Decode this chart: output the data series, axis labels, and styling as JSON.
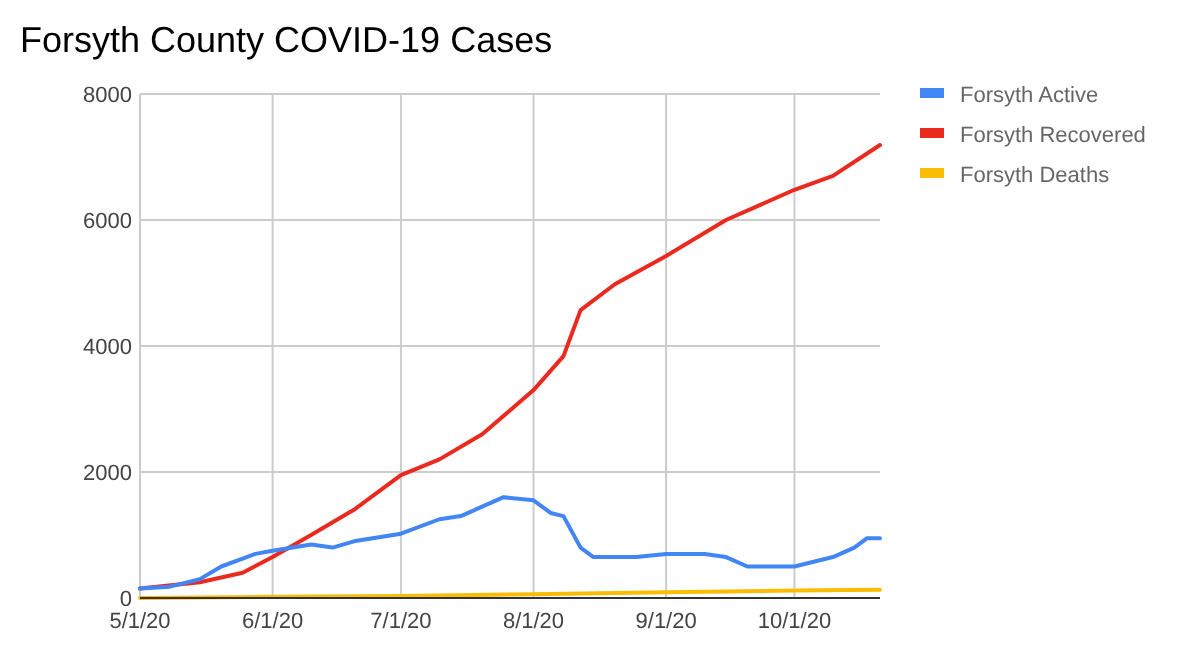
{
  "chart_data": {
    "type": "line",
    "title": "Forsyth County COVID-19 Cases",
    "legend": "right",
    "grid": true,
    "xlim": [
      "2020-05-01",
      "2020-10-21"
    ],
    "xticks": [
      {
        "value": "2020-05-01",
        "label": "5/1/20"
      },
      {
        "value": "2020-06-01",
        "label": "6/1/20"
      },
      {
        "value": "2020-07-01",
        "label": "7/1/20"
      },
      {
        "value": "2020-08-01",
        "label": "8/1/20"
      },
      {
        "value": "2020-09-01",
        "label": "9/1/20"
      },
      {
        "value": "2020-10-01",
        "label": "10/1/20"
      }
    ],
    "ylim": [
      0,
      8000
    ],
    "yticks": [
      0,
      2000,
      4000,
      6000,
      8000
    ],
    "series": [
      {
        "name": "Forsyth Active",
        "color": "#4285f4",
        "x": [
          "2020-05-01",
          "2020-05-08",
          "2020-05-15",
          "2020-05-20",
          "2020-05-28",
          "2020-06-01",
          "2020-06-10",
          "2020-06-15",
          "2020-06-20",
          "2020-07-01",
          "2020-07-10",
          "2020-07-15",
          "2020-07-20",
          "2020-07-25",
          "2020-08-01",
          "2020-08-05",
          "2020-08-08",
          "2020-08-12",
          "2020-08-15",
          "2020-08-25",
          "2020-09-01",
          "2020-09-10",
          "2020-09-15",
          "2020-09-20",
          "2020-10-01",
          "2020-10-10",
          "2020-10-15",
          "2020-10-18",
          "2020-10-21"
        ],
        "values": [
          150,
          180,
          300,
          500,
          700,
          750,
          850,
          800,
          900,
          1020,
          1250,
          1300,
          1450,
          1600,
          1550,
          1350,
          1300,
          800,
          650,
          650,
          700,
          700,
          650,
          500,
          500,
          650,
          800,
          950,
          950
        ]
      },
      {
        "name": "Forsyth Recovered",
        "color": "#ea2a1f",
        "x": [
          "2020-05-01",
          "2020-05-15",
          "2020-05-25",
          "2020-06-01",
          "2020-06-10",
          "2020-06-20",
          "2020-07-01",
          "2020-07-10",
          "2020-07-20",
          "2020-08-01",
          "2020-08-08",
          "2020-08-12",
          "2020-08-20",
          "2020-09-01",
          "2020-09-15",
          "2020-10-01",
          "2020-10-10",
          "2020-10-21"
        ],
        "values": [
          150,
          250,
          400,
          650,
          1000,
          1400,
          1950,
          2200,
          2600,
          3300,
          3840,
          4570,
          4980,
          5430,
          6000,
          6480,
          6700,
          7190
        ]
      },
      {
        "name": "Forsyth Deaths",
        "color": "#fbbc04",
        "x": [
          "2020-05-01",
          "2020-06-01",
          "2020-07-01",
          "2020-08-01",
          "2020-09-01",
          "2020-10-01",
          "2020-10-21"
        ],
        "values": [
          0,
          20,
          30,
          60,
          90,
          120,
          130
        ]
      }
    ]
  }
}
